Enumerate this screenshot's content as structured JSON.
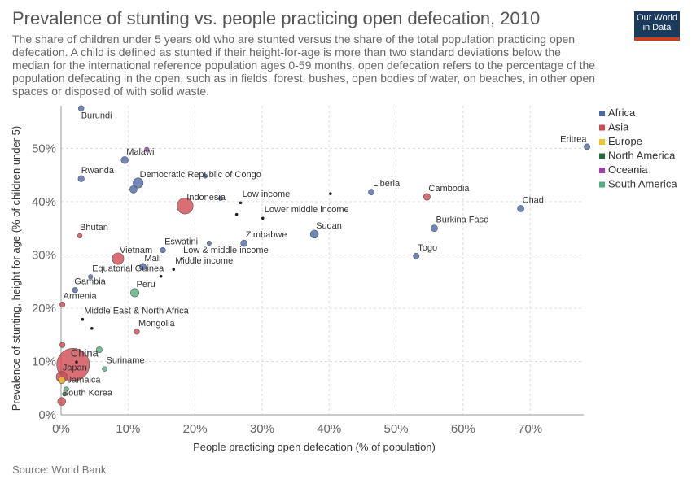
{
  "header": {
    "title": "Prevalence of stunting vs. people practicing open defecation, 2010",
    "subtitle": "The share of children under 5 years old who are stunted versus the share of the total population practicing open defecation. A child is defined as stunted if their height-for-age is more than two standard deviations below the median for the international reference population ages 0-59 months. open defecation refers to the percentage of the population defecating in the open, such as in fields, forest, bushes, open bodies of water, on beaches, in other open spaces or disposed of with solid waste.",
    "logo_line1": "Our World",
    "logo_line2": "in Data",
    "source": "Source: World Bank"
  },
  "colors": {
    "Africa": "#4c6aa8",
    "Asia": "#d04a52",
    "Europe": "#f2c12e",
    "North America": "#2e6b3a",
    "Oceania": "#a13ea8",
    "South America": "#52b07a",
    "Aggregate": "#222222",
    "grid": "#dddddd",
    "axis": "#999999"
  },
  "chart_data": {
    "type": "scatter",
    "xlabel": "People practicing open defecation (% of population)",
    "ylabel": "Prevalence of stunting, height for age (% of children under 5)",
    "xlim": [
      0,
      78
    ],
    "ylim": [
      0,
      58
    ],
    "xticks": [
      0,
      10,
      20,
      30,
      40,
      50,
      60,
      70
    ],
    "yticks": [
      0,
      10,
      20,
      30,
      40,
      50
    ],
    "tick_suffix": "%",
    "grid": true,
    "legend": {
      "position": "right",
      "entries": [
        "Africa",
        "Asia",
        "Europe",
        "North America",
        "Oceania",
        "South America"
      ]
    },
    "points": [
      {
        "label": "Burundi",
        "x": 3.0,
        "y": 57.5,
        "region": "Africa",
        "size": 1
      },
      {
        "label": "Malawi",
        "x": 9.5,
        "y": 47.8,
        "region": "Africa",
        "size": 1.5
      },
      {
        "label": "",
        "x": 12.8,
        "y": 49.8,
        "region": "Oceania",
        "size": 0.6
      },
      {
        "label": "Rwanda",
        "x": 3.0,
        "y": 44.3,
        "region": "Africa",
        "size": 1.2
      },
      {
        "label": "Democratic Republic of Congo",
        "x": 11.5,
        "y": 43.5,
        "region": "Africa",
        "size": 2.5
      },
      {
        "label": "",
        "x": 10.8,
        "y": 42.3,
        "region": "Africa",
        "size": 1.6
      },
      {
        "label": "",
        "x": 21.5,
        "y": 44.8,
        "region": "Africa",
        "size": 0.6
      },
      {
        "label": "Indonesia",
        "x": 18.5,
        "y": 39.2,
        "region": "Asia",
        "size": 4.5
      },
      {
        "label": "",
        "x": 23.8,
        "y": 40.6,
        "region": "Africa",
        "size": 0.6
      },
      {
        "label": "Low income",
        "x": 26.8,
        "y": 39.8,
        "region": "Aggregate",
        "size": 0.5
      },
      {
        "label": "",
        "x": 40.2,
        "y": 41.5,
        "region": "Aggregate",
        "size": 0.4
      },
      {
        "label": "Liberia",
        "x": 46.3,
        "y": 41.8,
        "region": "Africa",
        "size": 1.1
      },
      {
        "label": "Cambodia",
        "x": 54.6,
        "y": 40.9,
        "region": "Asia",
        "size": 1.4
      },
      {
        "label": "Chad",
        "x": 68.6,
        "y": 38.7,
        "region": "Africa",
        "size": 1.3
      },
      {
        "label": "Eritrea",
        "x": 78.5,
        "y": 50.3,
        "region": "Africa",
        "size": 1.1
      },
      {
        "label": "",
        "x": 26.2,
        "y": 37.6,
        "region": "Aggregate",
        "size": 0.4
      },
      {
        "label": "Lower middle income",
        "x": 30.1,
        "y": 36.9,
        "region": "Aggregate",
        "size": 0.5
      },
      {
        "label": "Sudan",
        "x": 37.8,
        "y": 33.9,
        "region": "Africa",
        "size": 1.8
      },
      {
        "label": "Burkina Faso",
        "x": 55.7,
        "y": 35.0,
        "region": "Africa",
        "size": 1.3
      },
      {
        "label": "Zimbabwe",
        "x": 27.3,
        "y": 32.2,
        "region": "Africa",
        "size": 1.3
      },
      {
        "label": "",
        "x": 22.1,
        "y": 32.2,
        "region": "Africa",
        "size": 0.6
      },
      {
        "label": "Eswatini",
        "x": 15.2,
        "y": 30.9,
        "region": "Africa",
        "size": 0.9
      },
      {
        "label": "Low & middle income",
        "x": 18.0,
        "y": 29.3,
        "region": "Aggregate",
        "size": 0.5
      },
      {
        "label": "Togo",
        "x": 53.0,
        "y": 29.8,
        "region": "Africa",
        "size": 1.1
      },
      {
        "label": "Bhutan",
        "x": 2.8,
        "y": 33.6,
        "region": "Asia",
        "size": 0.7
      },
      {
        "label": "Vietnam",
        "x": 8.5,
        "y": 29.3,
        "region": "Asia",
        "size": 3.0
      },
      {
        "label": "Mali",
        "x": 12.2,
        "y": 27.8,
        "region": "Africa",
        "size": 1.3
      },
      {
        "label": "Middle income",
        "x": 16.8,
        "y": 27.3,
        "region": "Aggregate",
        "size": 0.6
      },
      {
        "label": "",
        "x": 14.9,
        "y": 26.0,
        "region": "Aggregate",
        "size": 0.4
      },
      {
        "label": "Equatorial Guinea",
        "x": 4.4,
        "y": 25.9,
        "region": "Africa",
        "size": 0.6
      },
      {
        "label": "Gambia",
        "x": 2.1,
        "y": 23.4,
        "region": "Africa",
        "size": 0.9
      },
      {
        "label": "Peru",
        "x": 11.0,
        "y": 22.9,
        "region": "South America",
        "size": 1.9
      },
      {
        "label": "Armenia",
        "x": 0.2,
        "y": 20.7,
        "region": "Asia",
        "size": 0.9
      },
      {
        "label": "Middle East & North Africa",
        "x": 3.2,
        "y": 17.9,
        "region": "Aggregate",
        "size": 0.6
      },
      {
        "label": "",
        "x": 4.6,
        "y": 16.2,
        "region": "Aggregate",
        "size": 0.4
      },
      {
        "label": "Mongolia",
        "x": 11.3,
        "y": 15.6,
        "region": "Asia",
        "size": 0.9
      },
      {
        "label": "",
        "x": 0.2,
        "y": 13.1,
        "region": "Asia",
        "size": 0.9
      },
      {
        "label": "",
        "x": 5.7,
        "y": 12.2,
        "region": "South America",
        "size": 1.1
      },
      {
        "label": "China",
        "x": 1.8,
        "y": 9.4,
        "region": "Asia",
        "size": 10
      },
      {
        "label": "",
        "x": 2.3,
        "y": 9.9,
        "region": "Aggregate",
        "size": 0.4
      },
      {
        "label": "Suriname",
        "x": 6.5,
        "y": 8.6,
        "region": "South America",
        "size": 0.7
      },
      {
        "label": "Japan",
        "x": 0.1,
        "y": 7.1,
        "region": "Asia",
        "size": 2.8
      },
      {
        "label": "",
        "x": 0.1,
        "y": 6.5,
        "region": "Europe",
        "size": 1.4
      },
      {
        "label": "Jamaica",
        "x": 0.8,
        "y": 4.8,
        "region": "South America",
        "size": 0.7
      },
      {
        "label": "",
        "x": 0.5,
        "y": 3.9,
        "region": "North America",
        "size": 0.5
      },
      {
        "label": "South Korea",
        "x": 0.1,
        "y": 2.5,
        "region": "Asia",
        "size": 1.8
      }
    ]
  }
}
